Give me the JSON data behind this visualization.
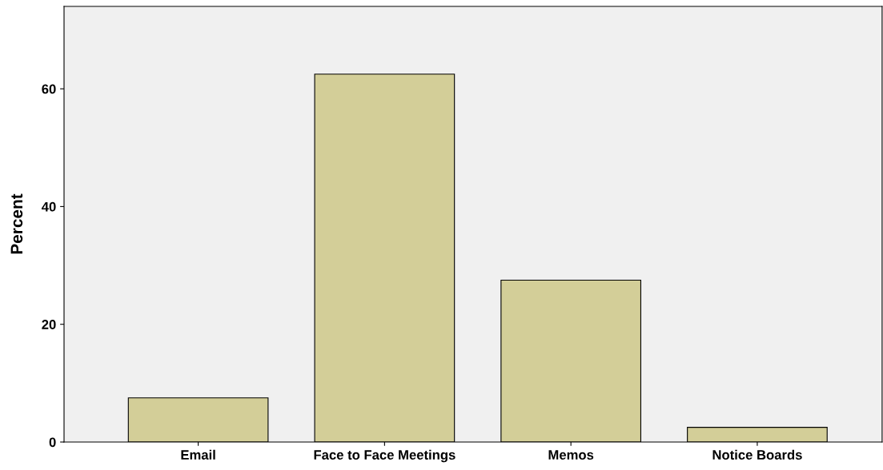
{
  "chart_data": {
    "type": "bar",
    "ylabel": "Percent",
    "categories": [
      "Email",
      "Face to Face Meetings",
      "Memos",
      "Notice Boards"
    ],
    "values": [
      7.5,
      62.5,
      27.5,
      2.5
    ],
    "color": "#d3ce98",
    "ylim": [
      0,
      74
    ],
    "yticks": [
      0,
      20,
      40,
      60
    ],
    "grid": false,
    "legend": false
  }
}
